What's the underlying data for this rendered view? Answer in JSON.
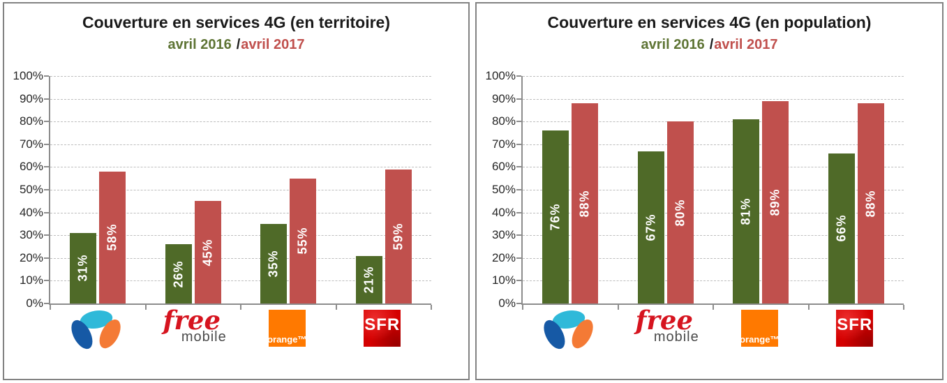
{
  "page": {
    "background": "#FFFFFF",
    "panel_border_color": "#828282",
    "axis_color": "#8C8C8C",
    "gridline_color": "#BDBDBD",
    "tick_label_color": "#262626",
    "title_color": "#1A1A1A",
    "bar_label_color": "#FFFFFF"
  },
  "chart_data": [
    {
      "type": "bar",
      "title": "Couverture en services 4G (en territoire)",
      "subtitle": {
        "left": "avril 2016",
        "sep": "/",
        "right": "avril 2017"
      },
      "subtitle_colors": {
        "left": "#5E7434",
        "sep": "#1A1A1A",
        "right": "#C0504D"
      },
      "categories": [
        "Bouygues Telecom",
        "Free Mobile",
        "Orange",
        "SFR"
      ],
      "series": [
        {
          "name": "avril 2016",
          "color": "#4F6A28",
          "values": [
            31,
            26,
            35,
            21
          ],
          "labels": [
            "31%",
            "26%",
            "35%",
            "21%"
          ]
        },
        {
          "name": "avril 2017",
          "color": "#C0504D",
          "values": [
            58,
            45,
            55,
            59
          ],
          "labels": [
            "58%",
            "45%",
            "55%",
            "59%"
          ]
        }
      ],
      "xlabel": "",
      "ylabel": "",
      "ylim": [
        0,
        100
      ],
      "yticks": [
        "100%",
        "90%",
        "80%",
        "70%",
        "60%",
        "50%",
        "40%",
        "30%",
        "20%",
        "10%",
        "0%"
      ],
      "grid": "horizontal-dashed",
      "legend_position": "subtitle-inline"
    },
    {
      "type": "bar",
      "title": "Couverture en services 4G (en population)",
      "subtitle": {
        "left": "avril 2016",
        "sep": "/",
        "right": "avril 2017"
      },
      "subtitle_colors": {
        "left": "#5E7434",
        "sep": "#1A1A1A",
        "right": "#C0504D"
      },
      "categories": [
        "Bouygues Telecom",
        "Free Mobile",
        "Orange",
        "SFR"
      ],
      "series": [
        {
          "name": "avril 2016",
          "color": "#4F6A28",
          "values": [
            76,
            67,
            81,
            66
          ],
          "labels": [
            "76%",
            "67%",
            "81%",
            "66%"
          ]
        },
        {
          "name": "avril 2017",
          "color": "#C0504D",
          "values": [
            88,
            80,
            89,
            88
          ],
          "labels": [
            "88%",
            "80%",
            "89%",
            "88%"
          ]
        }
      ],
      "xlabel": "",
      "ylabel": "",
      "ylim": [
        0,
        100
      ],
      "yticks": [
        "100%",
        "90%",
        "80%",
        "70%",
        "60%",
        "50%",
        "40%",
        "30%",
        "20%",
        "10%",
        "0%"
      ],
      "grid": "horizontal-dashed",
      "legend_position": "subtitle-inline"
    }
  ],
  "logos": {
    "bouygues": {
      "name": "Bouygues Telecom",
      "colors": {
        "top": "#2FB9D9",
        "left": "#1659A5",
        "right": "#F47A35"
      }
    },
    "free": {
      "text_main": "free",
      "text_sub": "mobile",
      "color_main": "#D6141F",
      "color_sub": "#4A4A4A"
    },
    "orange": {
      "text": "orange™",
      "bg": "#FF7900",
      "fg": "#FFFFFF"
    },
    "sfr": {
      "text": "SFR",
      "bg": "#D40000",
      "fg": "#FFFFFF"
    }
  }
}
